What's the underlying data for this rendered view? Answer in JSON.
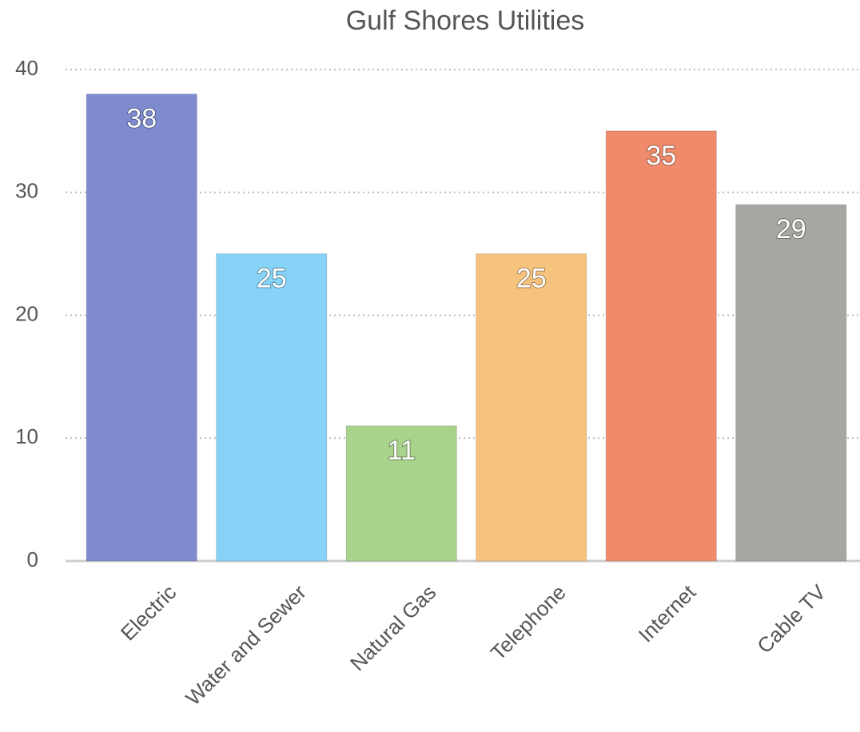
{
  "chart_data": {
    "type": "bar",
    "title": "Gulf Shores Utilities",
    "categories": [
      "Electric",
      "Water and Sewer",
      "Natural Gas",
      "Telephone",
      "Internet",
      "Cable TV"
    ],
    "values": [
      38,
      25,
      11,
      25,
      35,
      29
    ],
    "colors": [
      "#7f8bcf",
      "#87d3f8",
      "#a9d38a",
      "#f6c37e",
      "#ef8a6a",
      "#a8a6a2"
    ],
    "ylim": [
      0,
      40
    ],
    "yticks": [
      0,
      10,
      20,
      30,
      40
    ],
    "grid": true
  }
}
